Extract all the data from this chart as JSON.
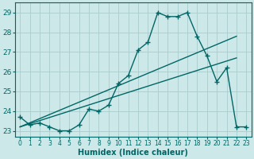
{
  "xlabel": "Humidex (Indice chaleur)",
  "bg_color": "#cce8e8",
  "grid_color": "#aacccc",
  "line_color": "#006666",
  "xlim": [
    -0.5,
    23.5
  ],
  "ylim": [
    22.7,
    29.5
  ],
  "yticks": [
    23,
    24,
    25,
    26,
    27,
    28,
    29
  ],
  "xticks": [
    0,
    1,
    2,
    3,
    4,
    5,
    6,
    7,
    8,
    9,
    10,
    11,
    12,
    13,
    14,
    15,
    16,
    17,
    18,
    19,
    20,
    21,
    22,
    23
  ],
  "line1_x": [
    0,
    1,
    2,
    3,
    4,
    5,
    6,
    7,
    8,
    9,
    10,
    11,
    12,
    13,
    14,
    15,
    16,
    17,
    18,
    19,
    20,
    21,
    22,
    23
  ],
  "line1_y": [
    23.7,
    23.3,
    23.4,
    23.2,
    23.0,
    23.0,
    23.3,
    24.1,
    24.0,
    24.3,
    25.4,
    25.8,
    27.1,
    27.5,
    29.0,
    28.8,
    28.8,
    29.0,
    27.8,
    26.8,
    25.5,
    26.2,
    23.2,
    23.2
  ],
  "line2_x": [
    0,
    22
  ],
  "line2_y": [
    23.2,
    27.8
  ],
  "line3_x": [
    0,
    22
  ],
  "line3_y": [
    23.2,
    26.7
  ],
  "marker": "+",
  "markersize": 4,
  "linewidth": 1.0
}
